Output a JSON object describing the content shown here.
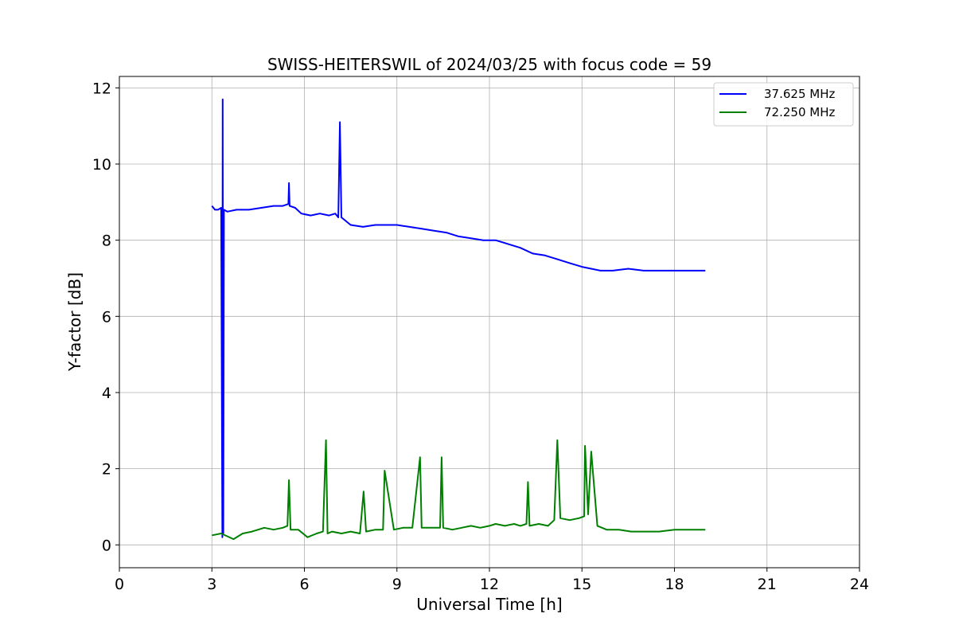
{
  "chart_data": {
    "type": "line",
    "title": "SWISS-HEITERSWIL of 2024/03/25 with focus code = 59",
    "xlabel": "Universal Time [h]",
    "ylabel": "Y-factor [dB]",
    "xlim": [
      0,
      24
    ],
    "ylim": [
      -0.6,
      12.3
    ],
    "xticks": [
      0,
      3,
      6,
      9,
      12,
      15,
      18,
      21,
      24
    ],
    "yticks": [
      0,
      2,
      4,
      6,
      8,
      10,
      12
    ],
    "grid": true,
    "legend_position": "top-right",
    "series": [
      {
        "name": "37.625 MHz",
        "color": "#0000ff",
        "x": [
          3.0,
          3.1,
          3.2,
          3.3,
          3.34,
          3.35,
          3.36,
          3.37,
          3.39,
          3.5,
          3.8,
          4.2,
          4.6,
          5.0,
          5.3,
          5.48,
          5.5,
          5.52,
          5.7,
          5.9,
          6.2,
          6.5,
          6.8,
          7.0,
          7.1,
          7.15,
          7.2,
          7.5,
          7.9,
          8.3,
          8.7,
          9.0,
          9.4,
          9.8,
          10.2,
          10.6,
          11.0,
          11.4,
          11.8,
          12.2,
          12.6,
          13.0,
          13.4,
          13.8,
          14.0,
          14.2,
          14.6,
          15.0,
          15.3,
          15.6,
          16.0,
          16.5,
          17.0,
          17.5,
          18.0,
          18.5,
          19.0
        ],
        "y": [
          8.9,
          8.8,
          8.8,
          8.85,
          0.2,
          11.7,
          5.3,
          0.3,
          8.8,
          8.75,
          8.8,
          8.8,
          8.85,
          8.9,
          8.9,
          8.95,
          9.5,
          8.9,
          8.85,
          8.7,
          8.65,
          8.7,
          8.65,
          8.7,
          8.6,
          11.1,
          8.6,
          8.4,
          8.35,
          8.4,
          8.4,
          8.4,
          8.35,
          8.3,
          8.25,
          8.2,
          8.1,
          8.05,
          8.0,
          8.0,
          7.9,
          7.8,
          7.65,
          7.6,
          7.55,
          7.5,
          7.4,
          7.3,
          7.25,
          7.2,
          7.2,
          7.25,
          7.2,
          7.2,
          7.2,
          7.2,
          7.2
        ]
      },
      {
        "name": "72.250 MHz",
        "color": "#008000",
        "x": [
          3.0,
          3.3,
          3.7,
          4.0,
          4.3,
          4.7,
          5.0,
          5.3,
          5.45,
          5.5,
          5.55,
          5.8,
          6.1,
          6.4,
          6.6,
          6.7,
          6.75,
          6.9,
          7.2,
          7.5,
          7.8,
          7.92,
          8.0,
          8.3,
          8.55,
          8.6,
          8.9,
          9.2,
          9.5,
          9.75,
          9.8,
          10.1,
          10.4,
          10.45,
          10.5,
          10.8,
          11.1,
          11.4,
          11.7,
          12.0,
          12.2,
          12.5,
          12.8,
          13.0,
          13.2,
          13.25,
          13.3,
          13.6,
          13.9,
          14.1,
          14.2,
          14.3,
          14.6,
          14.9,
          15.07,
          15.1,
          15.2,
          15.3,
          15.5,
          15.8,
          16.2,
          16.6,
          17.0,
          17.5,
          18.0,
          18.5,
          19.0
        ],
        "y": [
          0.25,
          0.3,
          0.15,
          0.3,
          0.35,
          0.45,
          0.4,
          0.45,
          0.5,
          1.7,
          0.4,
          0.4,
          0.2,
          0.3,
          0.35,
          2.75,
          0.3,
          0.35,
          0.3,
          0.35,
          0.3,
          1.4,
          0.35,
          0.4,
          0.4,
          1.95,
          0.4,
          0.45,
          0.45,
          2.3,
          0.45,
          0.45,
          0.45,
          2.3,
          0.45,
          0.4,
          0.45,
          0.5,
          0.45,
          0.5,
          0.55,
          0.5,
          0.55,
          0.5,
          0.55,
          1.65,
          0.5,
          0.55,
          0.5,
          0.65,
          2.75,
          0.7,
          0.65,
          0.7,
          0.75,
          2.6,
          0.8,
          2.45,
          0.5,
          0.4,
          0.4,
          0.35,
          0.35,
          0.35,
          0.4,
          0.4,
          0.4
        ]
      }
    ]
  }
}
